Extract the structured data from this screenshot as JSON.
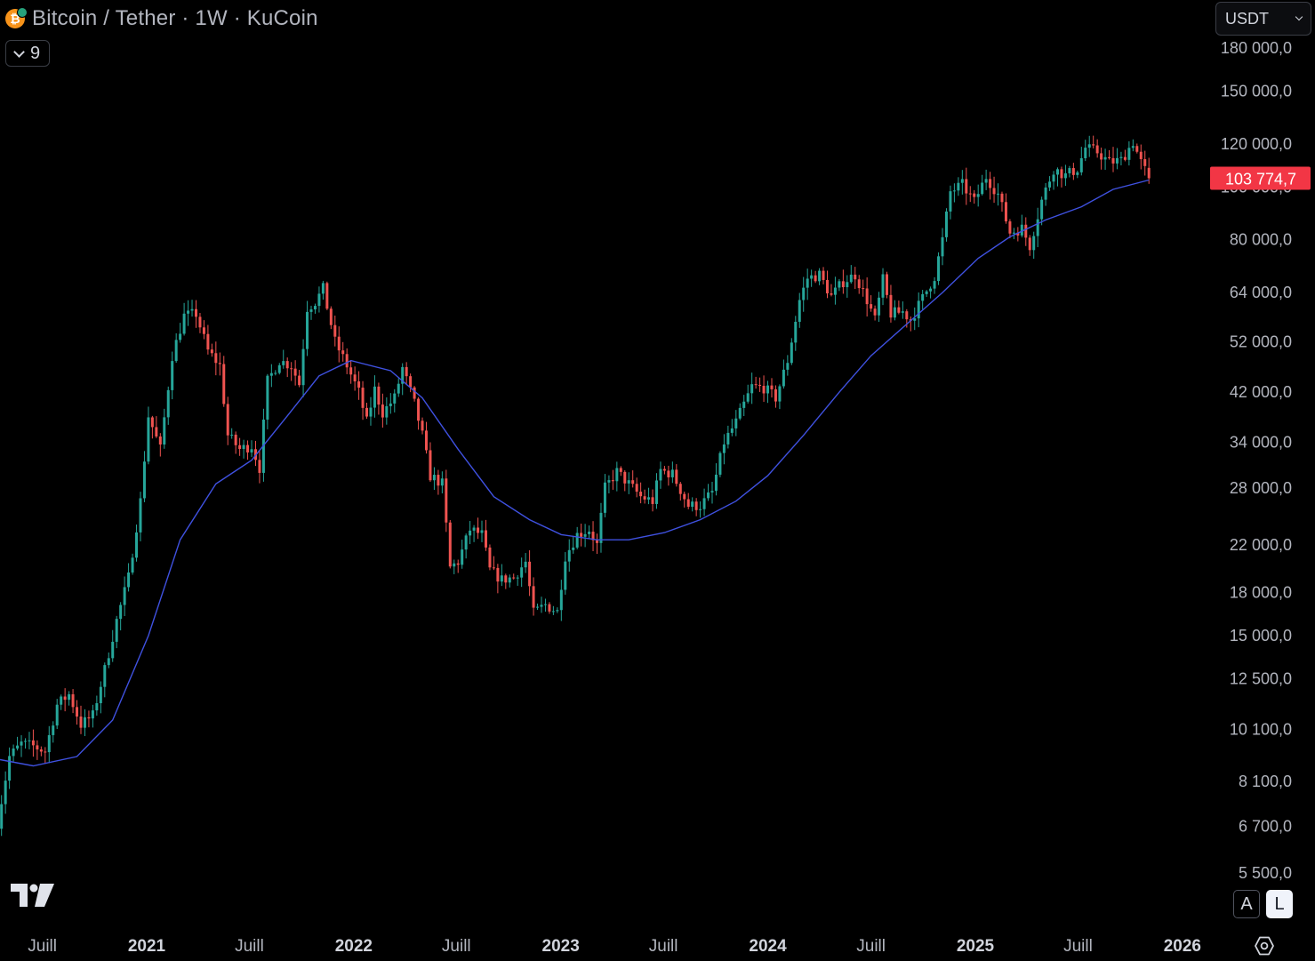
{
  "header": {
    "title": "Bitcoin / Tether · 1W · KuCoin",
    "indicator_count": "9",
    "currency": "USDT",
    "coin_glyph": "₿"
  },
  "controls": {
    "auto_label": "A",
    "log_label": "L"
  },
  "colors": {
    "background": "#000000",
    "up": "#26a69a",
    "down": "#ef5350",
    "ma_line": "#3f51e0",
    "price_badge": "#f23645"
  },
  "icons": [
    "bitcoin-icon",
    "chevron-down-icon",
    "tradingview-logo-icon",
    "settings-icon"
  ],
  "chart_data": {
    "type": "candlestick",
    "scale": "log",
    "interval": "1W",
    "last_price": 103774.7,
    "last_price_label": "103 774,7",
    "y_ticks": [
      {
        "value": 180000,
        "label": "180 000,0"
      },
      {
        "value": 150000,
        "label": "150 000,0"
      },
      {
        "value": 120000,
        "label": "120 000,0"
      },
      {
        "value": 100000,
        "label": "100 000,0"
      },
      {
        "value": 80000,
        "label": "80 000,0"
      },
      {
        "value": 64000,
        "label": "64 000,0"
      },
      {
        "value": 52000,
        "label": "52 000,0"
      },
      {
        "value": 42000,
        "label": "42 000,0"
      },
      {
        "value": 34000,
        "label": "34 000,0"
      },
      {
        "value": 28000,
        "label": "28 000,0"
      },
      {
        "value": 22000,
        "label": "22 000,0"
      },
      {
        "value": 18000,
        "label": "18 000,0"
      },
      {
        "value": 15000,
        "label": "15 000,0"
      },
      {
        "value": 12500,
        "label": "12 500,0"
      },
      {
        "value": 10100,
        "label": "10 100,0"
      },
      {
        "value": 8100,
        "label": "8 100,0"
      },
      {
        "value": 6700,
        "label": "6 700,0"
      },
      {
        "value": 5500,
        "label": "5 500,0"
      }
    ],
    "x_ticks": [
      {
        "date": "2020-07-01",
        "label": "Juill",
        "bold": false
      },
      {
        "date": "2021-01-01",
        "label": "2021",
        "bold": true
      },
      {
        "date": "2021-07-01",
        "label": "Juill",
        "bold": false
      },
      {
        "date": "2022-01-01",
        "label": "2022",
        "bold": true
      },
      {
        "date": "2022-07-01",
        "label": "Juill",
        "bold": false
      },
      {
        "date": "2023-01-01",
        "label": "2023",
        "bold": true
      },
      {
        "date": "2023-07-01",
        "label": "Juill",
        "bold": false
      },
      {
        "date": "2024-01-01",
        "label": "2024",
        "bold": true
      },
      {
        "date": "2024-07-01",
        "label": "Juill",
        "bold": false
      },
      {
        "date": "2025-01-01",
        "label": "2025",
        "bold": true
      },
      {
        "date": "2025-07-01",
        "label": "Juill",
        "bold": false
      },
      {
        "date": "2026-01-01",
        "label": "2026",
        "bold": true
      }
    ],
    "close_anchors": [
      [
        "2020-04-13",
        6800
      ],
      [
        "2020-05-04",
        9000
      ],
      [
        "2020-05-25",
        9500
      ],
      [
        "2020-06-15",
        9400
      ],
      [
        "2020-07-06",
        9200
      ],
      [
        "2020-07-27",
        11200
      ],
      [
        "2020-08-17",
        11700
      ],
      [
        "2020-09-07",
        10300
      ],
      [
        "2020-09-28",
        10700
      ],
      [
        "2020-10-19",
        13000
      ],
      [
        "2020-11-09",
        16000
      ],
      [
        "2020-11-30",
        19200
      ],
      [
        "2020-12-21",
        26500
      ],
      [
        "2021-01-04",
        38000
      ],
      [
        "2021-01-25",
        33000
      ],
      [
        "2021-02-15",
        49000
      ],
      [
        "2021-03-08",
        58000
      ],
      [
        "2021-03-29",
        58500
      ],
      [
        "2021-04-19",
        50000
      ],
      [
        "2021-05-10",
        47000
      ],
      [
        "2021-05-24",
        35000
      ],
      [
        "2021-06-14",
        33000
      ],
      [
        "2021-07-05",
        33500
      ],
      [
        "2021-07-19",
        30500
      ],
      [
        "2021-08-02",
        44000
      ],
      [
        "2021-08-23",
        48000
      ],
      [
        "2021-09-13",
        47000
      ],
      [
        "2021-09-27",
        43500
      ],
      [
        "2021-10-11",
        60000
      ],
      [
        "2021-10-25",
        61500
      ],
      [
        "2021-11-08",
        65000
      ],
      [
        "2021-11-29",
        52000
      ],
      [
        "2021-12-20",
        47000
      ],
      [
        "2022-01-10",
        42000
      ],
      [
        "2022-01-24",
        37000
      ],
      [
        "2022-02-07",
        42500
      ],
      [
        "2022-02-21",
        38500
      ],
      [
        "2022-03-14",
        41000
      ],
      [
        "2022-03-28",
        46500
      ],
      [
        "2022-04-18",
        40000
      ],
      [
        "2022-05-02",
        35000
      ],
      [
        "2022-05-16",
        29500
      ],
      [
        "2022-06-06",
        28500
      ],
      [
        "2022-06-20",
        20000
      ],
      [
        "2022-07-04",
        20500
      ],
      [
        "2022-07-25",
        23500
      ],
      [
        "2022-08-15",
        23000
      ],
      [
        "2022-08-29",
        19800
      ],
      [
        "2022-09-19",
        19000
      ],
      [
        "2022-10-10",
        19200
      ],
      [
        "2022-10-31",
        20500
      ],
      [
        "2022-11-14",
        16500
      ],
      [
        "2022-12-05",
        17100
      ],
      [
        "2022-12-26",
        16600
      ],
      [
        "2023-01-09",
        21000
      ],
      [
        "2023-01-30",
        23000
      ],
      [
        "2023-02-20",
        23500
      ],
      [
        "2023-03-06",
        22000
      ],
      [
        "2023-03-20",
        28000
      ],
      [
        "2023-04-10",
        30000
      ],
      [
        "2023-05-01",
        28500
      ],
      [
        "2023-05-22",
        27000
      ],
      [
        "2023-06-12",
        26500
      ],
      [
        "2023-06-26",
        30200
      ],
      [
        "2023-07-17",
        29700
      ],
      [
        "2023-08-14",
        26000
      ],
      [
        "2023-09-04",
        26000
      ],
      [
        "2023-09-25",
        27500
      ],
      [
        "2023-10-16",
        34000
      ],
      [
        "2023-11-06",
        37000
      ],
      [
        "2023-12-04",
        43000
      ],
      [
        "2023-12-25",
        42800
      ],
      [
        "2024-01-15",
        41000
      ],
      [
        "2024-02-05",
        48000
      ],
      [
        "2024-02-26",
        62000
      ],
      [
        "2024-03-11",
        68000
      ],
      [
        "2024-04-01",
        69000
      ],
      [
        "2024-04-22",
        63000
      ],
      [
        "2024-05-13",
        67000
      ],
      [
        "2024-06-03",
        69000
      ],
      [
        "2024-06-24",
        62000
      ],
      [
        "2024-07-08",
        57000
      ],
      [
        "2024-07-22",
        67500
      ],
      [
        "2024-08-05",
        58500
      ],
      [
        "2024-08-26",
        59000
      ],
      [
        "2024-09-09",
        57000
      ],
      [
        "2024-09-30",
        62500
      ],
      [
        "2024-10-21",
        68500
      ],
      [
        "2024-11-04",
        80000
      ],
      [
        "2024-11-18",
        98000
      ],
      [
        "2024-12-09",
        101000
      ],
      [
        "2024-12-30",
        94000
      ],
      [
        "2025-01-20",
        104500
      ],
      [
        "2025-02-10",
        97000
      ],
      [
        "2025-03-03",
        82500
      ],
      [
        "2025-03-24",
        84000
      ],
      [
        "2025-04-07",
        78000
      ],
      [
        "2025-04-28",
        94500
      ],
      [
        "2025-05-19",
        108000
      ],
      [
        "2025-06-09",
        105000
      ],
      [
        "2025-06-30",
        108000
      ],
      [
        "2025-07-14",
        118000
      ],
      [
        "2025-08-04",
        116000
      ],
      [
        "2025-08-25",
        111000
      ],
      [
        "2025-09-15",
        112000
      ],
      [
        "2025-10-06",
        121000
      ],
      [
        "2025-10-20",
        111000
      ],
      [
        "2025-11-03",
        103774.7
      ]
    ],
    "ma_line": [
      [
        "2020-04-13",
        8900
      ],
      [
        "2020-06-15",
        8650
      ],
      [
        "2020-08-31",
        9000
      ],
      [
        "2020-11-02",
        10500
      ],
      [
        "2021-01-04",
        15000
      ],
      [
        "2021-03-01",
        22500
      ],
      [
        "2021-05-03",
        28500
      ],
      [
        "2021-07-05",
        31500
      ],
      [
        "2021-09-06",
        38000
      ],
      [
        "2021-11-01",
        45000
      ],
      [
        "2021-12-27",
        48000
      ],
      [
        "2022-03-07",
        46000
      ],
      [
        "2022-05-02",
        41000
      ],
      [
        "2022-07-04",
        33000
      ],
      [
        "2022-09-05",
        27000
      ],
      [
        "2022-11-07",
        24500
      ],
      [
        "2023-01-02",
        23000
      ],
      [
        "2023-03-06",
        22500
      ],
      [
        "2023-05-01",
        22500
      ],
      [
        "2023-07-03",
        23200
      ],
      [
        "2023-09-04",
        24500
      ],
      [
        "2023-11-06",
        26500
      ],
      [
        "2024-01-01",
        29500
      ],
      [
        "2024-03-04",
        35000
      ],
      [
        "2024-05-06",
        42000
      ],
      [
        "2024-07-01",
        49000
      ],
      [
        "2024-09-02",
        56000
      ],
      [
        "2024-11-04",
        64000
      ],
      [
        "2025-01-06",
        74000
      ],
      [
        "2025-03-03",
        81000
      ],
      [
        "2025-05-05",
        87000
      ],
      [
        "2025-07-07",
        92000
      ],
      [
        "2025-09-01",
        99000
      ],
      [
        "2025-11-03",
        103000
      ]
    ]
  }
}
